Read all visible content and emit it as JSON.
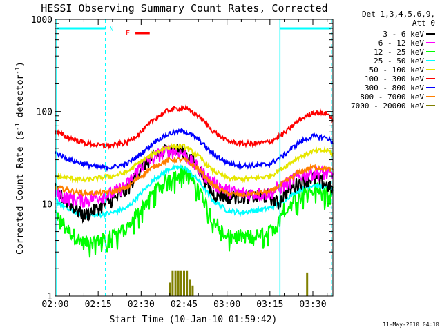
{
  "chart_data": {
    "type": "line",
    "title": "HESSI Observing Summary Count Rates, Corrected",
    "xlabel": "Start Time (10-Jan-10 01:59:42)",
    "ylabel": "Corrected Count Rate (s",
    "ylabel_sup1": "-1",
    "ylabel_mid": " detector",
    "ylabel_sup2": "-1",
    "ylabel_end": ")",
    "yscale": "log",
    "ylim": [
      1,
      1000
    ],
    "xlim_minutes": [
      0,
      97
    ],
    "x_ticks": [
      {
        "label": "02:00",
        "m": 0
      },
      {
        "label": "02:15",
        "m": 15
      },
      {
        "label": "02:30",
        "m": 30
      },
      {
        "label": "02:45",
        "m": 45
      },
      {
        "label": "03:00",
        "m": 60
      },
      {
        "label": "03:15",
        "m": 75
      },
      {
        "label": "03:30",
        "m": 90
      }
    ],
    "y_ticks": [
      {
        "label": "1",
        "v": 1
      },
      {
        "label": "10",
        "v": 10
      },
      {
        "label": "100",
        "v": 100
      },
      {
        "label": "1000",
        "v": 1000
      }
    ],
    "legend_header": [
      "Det 1,3,4,5,6,9,",
      "Att 0"
    ],
    "legend_position": "right",
    "series": [
      {
        "name": "3 - 6 keV",
        "color": "#000000",
        "m": [
          0,
          5,
          10,
          15,
          20,
          25,
          30,
          35,
          40,
          45,
          50,
          55,
          60,
          65,
          70,
          75,
          78,
          80,
          85,
          90,
          95,
          97
        ],
        "v": [
          14,
          10,
          7.5,
          9,
          11,
          14,
          25,
          33,
          40,
          37,
          25,
          13,
          12,
          12,
          12,
          12,
          10,
          13,
          17,
          19,
          16,
          14
        ]
      },
      {
        "name": "6 - 12 keV",
        "color": "#ff00ff",
        "m": [
          0,
          5,
          10,
          15,
          20,
          25,
          30,
          35,
          40,
          45,
          50,
          55,
          60,
          65,
          70,
          75,
          80,
          85,
          90,
          95,
          97
        ],
        "v": [
          13,
          11.5,
          11,
          12,
          13,
          16,
          26,
          33,
          38,
          35,
          24,
          17,
          14,
          13,
          13,
          13,
          16,
          20,
          22,
          21,
          20
        ]
      },
      {
        "name": "12 - 25 keV",
        "color": "#00ff00",
        "m": [
          0,
          5,
          10,
          15,
          20,
          25,
          30,
          35,
          40,
          45,
          50,
          55,
          60,
          65,
          70,
          75,
          78,
          80,
          85,
          90,
          95,
          97
        ],
        "v": [
          8,
          5,
          3.8,
          4,
          4.5,
          5.5,
          9,
          14,
          20,
          23,
          15,
          7,
          4.5,
          4.5,
          4.5,
          5,
          7,
          9,
          13,
          15,
          14,
          13
        ]
      },
      {
        "name": "25 - 50 keV",
        "color": "#00ffff",
        "m": [
          0,
          5,
          10,
          15,
          20,
          25,
          30,
          35,
          40,
          45,
          50,
          55,
          60,
          65,
          70,
          75,
          80,
          85,
          90,
          95,
          97
        ],
        "v": [
          11,
          8.5,
          7.5,
          7.5,
          8,
          9,
          13,
          19,
          24,
          25,
          18,
          11,
          8.5,
          8,
          8.5,
          9,
          11,
          14,
          16,
          15,
          14
        ]
      },
      {
        "name": "50 - 100 keV",
        "color": "#e6e600",
        "m": [
          0,
          5,
          10,
          15,
          20,
          25,
          30,
          35,
          40,
          45,
          50,
          55,
          60,
          65,
          70,
          75,
          80,
          85,
          90,
          95,
          97
        ],
        "v": [
          20,
          19,
          18,
          19,
          20,
          22,
          29,
          36,
          42,
          42,
          33,
          23,
          19,
          18.5,
          19,
          20,
          25,
          32,
          37,
          38,
          35
        ]
      },
      {
        "name": "100 - 300 keV",
        "color": "#ff0000",
        "m": [
          0,
          5,
          10,
          15,
          20,
          25,
          30,
          35,
          40,
          45,
          50,
          55,
          60,
          65,
          70,
          75,
          80,
          85,
          90,
          95,
          97
        ],
        "v": [
          60,
          52,
          46,
          43,
          43,
          46,
          60,
          85,
          105,
          110,
          90,
          62,
          48,
          45,
          45,
          47,
          58,
          80,
          98,
          95,
          82
        ]
      },
      {
        "name": "300 - 800 keV",
        "color": "#0000ff",
        "m": [
          0,
          5,
          10,
          15,
          20,
          25,
          30,
          35,
          40,
          45,
          50,
          55,
          60,
          65,
          70,
          75,
          80,
          85,
          90,
          95,
          97
        ],
        "v": [
          36,
          30,
          27,
          25,
          25,
          27,
          35,
          48,
          58,
          62,
          50,
          35,
          28,
          26,
          26,
          27,
          34,
          46,
          54,
          52,
          46
        ]
      },
      {
        "name": "800 - 7000 keV",
        "color": "#ff7f00",
        "m": [
          0,
          5,
          10,
          15,
          20,
          25,
          30,
          35,
          40,
          45,
          50,
          55,
          60,
          65,
          70,
          75,
          80,
          85,
          90,
          95,
          97
        ],
        "v": [
          15,
          14,
          13,
          13,
          13.5,
          15,
          20,
          26,
          30,
          30,
          24,
          16,
          13,
          12.5,
          13,
          13.5,
          17,
          22,
          25,
          24,
          23
        ]
      },
      {
        "name": "7000 - 20000 keV",
        "color": "#808000",
        "m": [
          40,
          41,
          42,
          43,
          44,
          45,
          46,
          47,
          48,
          88
        ],
        "v": [
          1.4,
          1.9,
          1.9,
          1.9,
          1.9,
          1.9,
          1.9,
          1.5,
          1.3,
          1.8
        ]
      }
    ],
    "annotations": [
      {
        "text": "N",
        "color": "#00ffff"
      },
      {
        "text": "F",
        "color": "#ff0000"
      }
    ],
    "night_intervals_minutes": [
      [
        0,
        17.5
      ],
      [
        78.5,
        97
      ]
    ],
    "flare_bar_minutes": [
      28,
      33
    ],
    "timestamp": "11-May-2010 04:10"
  }
}
